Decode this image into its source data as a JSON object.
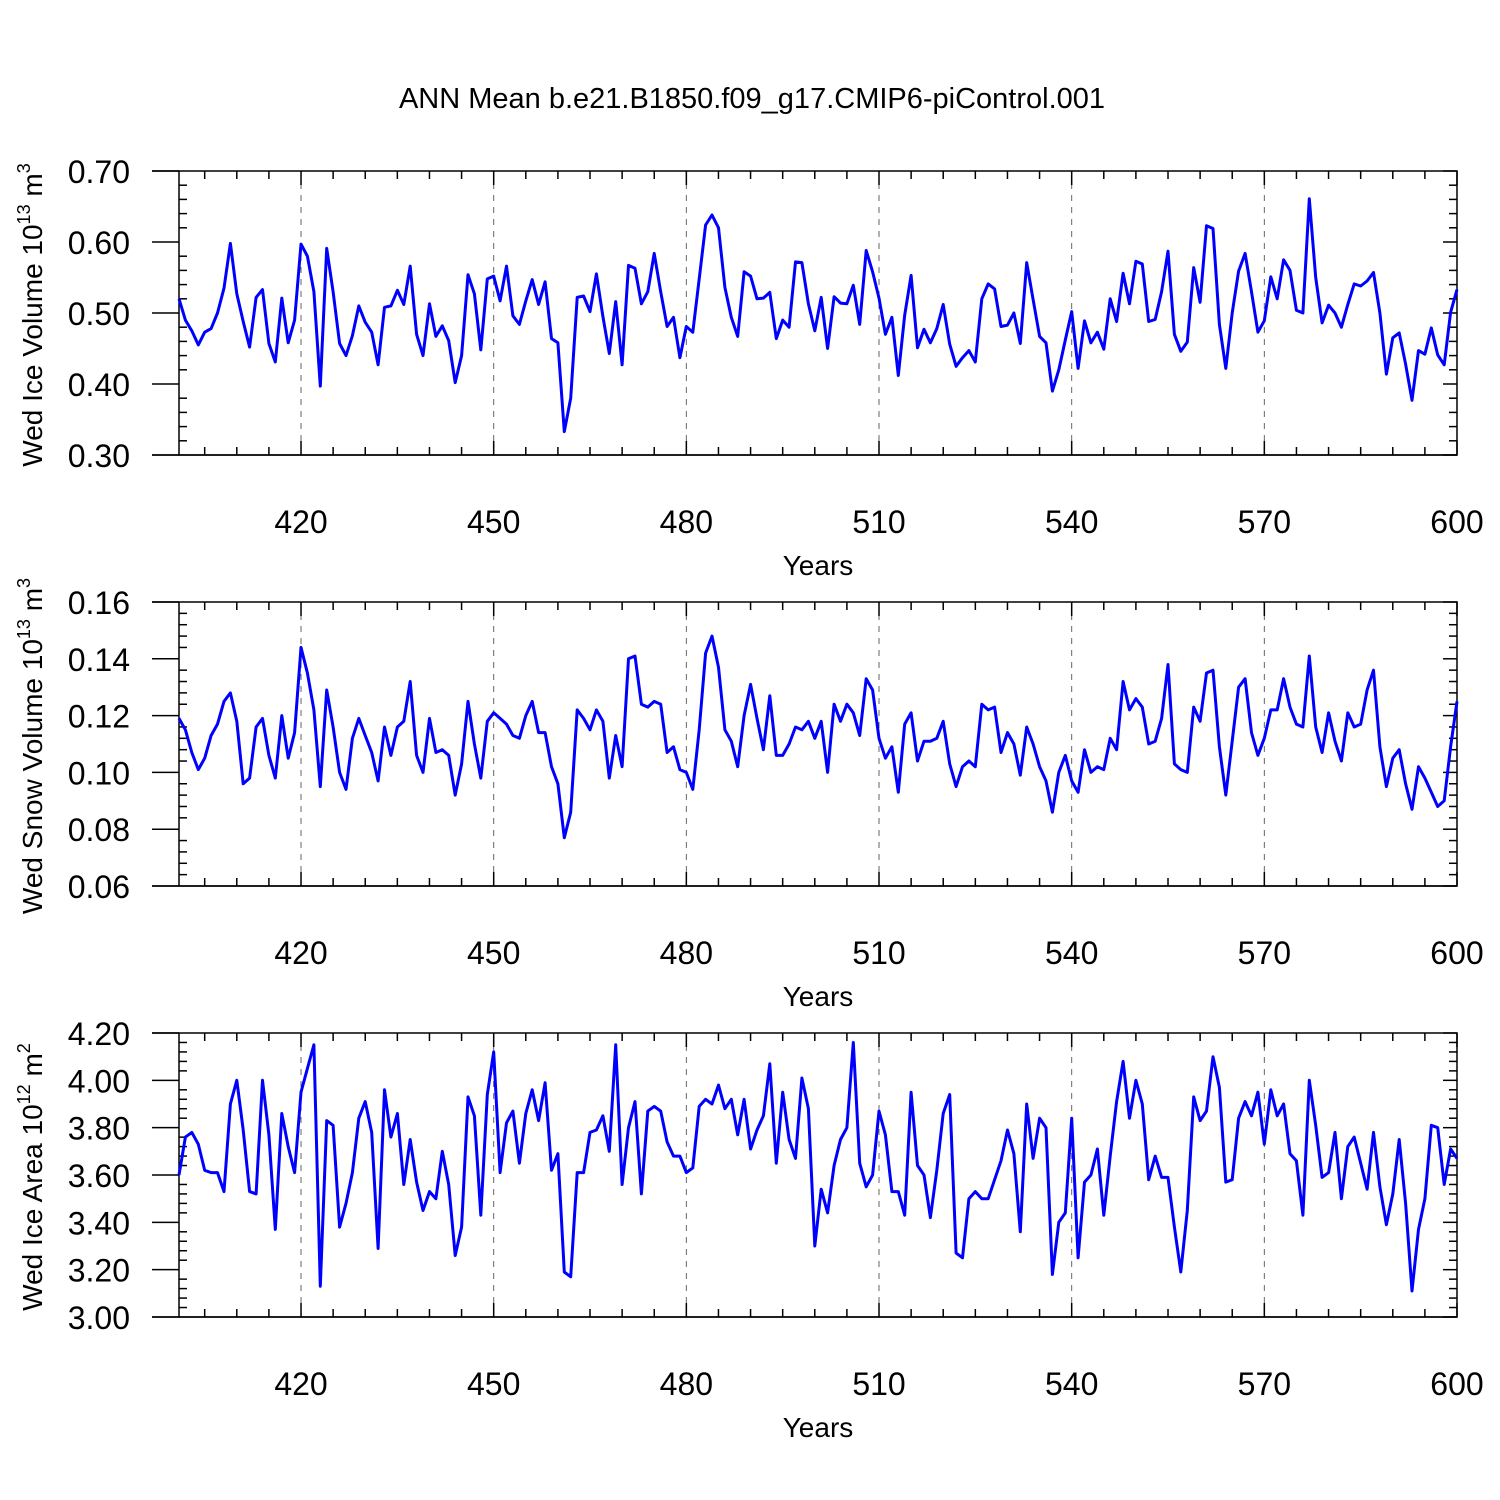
{
  "title": "ANN Mean b.e21.B1850.f09_g17.CMIP6-piControl.001",
  "line_color": "#0000ff",
  "chart_data": [
    {
      "type": "line",
      "ylabel": "Wed Ice Volume 10",
      "ylabel_exp": "13",
      "ylabel_unit": " m",
      "ylabel_unit_exp": "3",
      "xlabel": "Years",
      "xlim": [
        401,
        600
      ],
      "ylim": [
        0.3,
        0.7
      ],
      "yticks": [
        0.3,
        0.4,
        0.5,
        0.6,
        0.7
      ],
      "ytick_labels": [
        "0.30",
        "0.40",
        "0.50",
        "0.60",
        "0.70"
      ],
      "xticks": [
        420,
        450,
        480,
        510,
        540,
        570,
        600
      ],
      "xtick_labels": [
        "420",
        "450",
        "480",
        "510",
        "540",
        "570",
        "600"
      ],
      "grid": "vertical dashed at x ticks",
      "series": [
        {
          "x_start": 401,
          "values": [
            0.52,
            0.49,
            0.475,
            0.455,
            0.473,
            0.478,
            0.5,
            0.535,
            0.598,
            0.527,
            0.488,
            0.452,
            0.522,
            0.533,
            0.457,
            0.431,
            0.521,
            0.458,
            0.49,
            0.597,
            0.58,
            0.53,
            0.397,
            0.591,
            0.53,
            0.457,
            0.44,
            0.468,
            0.51,
            0.487,
            0.473,
            0.427,
            0.508,
            0.51,
            0.532,
            0.512,
            0.566,
            0.47,
            0.44,
            0.513,
            0.467,
            0.482,
            0.461,
            0.402,
            0.44,
            0.554,
            0.527,
            0.448,
            0.548,
            0.552,
            0.517,
            0.566,
            0.496,
            0.484,
            0.517,
            0.547,
            0.512,
            0.544,
            0.464,
            0.458,
            0.333,
            0.38,
            0.522,
            0.524,
            0.502,
            0.555,
            0.495,
            0.443,
            0.516,
            0.427,
            0.567,
            0.563,
            0.513,
            0.53,
            0.584,
            0.53,
            0.481,
            0.494,
            0.437,
            0.481,
            0.473,
            0.548,
            0.624,
            0.638,
            0.62,
            0.536,
            0.494,
            0.467,
            0.558,
            0.552,
            0.52,
            0.521,
            0.529,
            0.464,
            0.49,
            0.48,
            0.572,
            0.571,
            0.513,
            0.475,
            0.522,
            0.45,
            0.523,
            0.514,
            0.513,
            0.539,
            0.484,
            0.588,
            0.558,
            0.521,
            0.47,
            0.494,
            0.412,
            0.497,
            0.553,
            0.451,
            0.477,
            0.458,
            0.478,
            0.512,
            0.456,
            0.425,
            0.437,
            0.447,
            0.431,
            0.52,
            0.541,
            0.534,
            0.481,
            0.483,
            0.5,
            0.457,
            0.571,
            0.519,
            0.467,
            0.458,
            0.39,
            0.42,
            0.462,
            0.502,
            0.422,
            0.489,
            0.458,
            0.473,
            0.449,
            0.52,
            0.488,
            0.556,
            0.513,
            0.573,
            0.569,
            0.488,
            0.491,
            0.53,
            0.587,
            0.47,
            0.446,
            0.459,
            0.564,
            0.515,
            0.623,
            0.619,
            0.484,
            0.422,
            0.5,
            0.559,
            0.584,
            0.53,
            0.473,
            0.489,
            0.551,
            0.52,
            0.575,
            0.56,
            0.504,
            0.5,
            0.661,
            0.55,
            0.486,
            0.511,
            0.5,
            0.48,
            0.512,
            0.541,
            0.538,
            0.545,
            0.557,
            0.5,
            0.414,
            0.465,
            0.472,
            0.428,
            0.377,
            0.447,
            0.442,
            0.479,
            0.441,
            0.427,
            0.501,
            0.533
          ]
        }
      ]
    },
    {
      "type": "line",
      "ylabel": "Wed Snow Volume 10",
      "ylabel_exp": "13",
      "ylabel_unit": " m",
      "ylabel_unit_exp": "3",
      "xlabel": "Years",
      "xlim": [
        401,
        600
      ],
      "ylim": [
        0.06,
        0.16
      ],
      "yticks": [
        0.06,
        0.08,
        0.1,
        0.12,
        0.14,
        0.16
      ],
      "ytick_labels": [
        "0.06",
        "0.08",
        "0.10",
        "0.12",
        "0.14",
        "0.16"
      ],
      "xticks": [
        420,
        450,
        480,
        510,
        540,
        570,
        600
      ],
      "xtick_labels": [
        "420",
        "450",
        "480",
        "510",
        "540",
        "570",
        "600"
      ],
      "grid": "vertical dashed at x ticks",
      "series": [
        {
          "x_start": 401,
          "values": [
            0.119,
            0.115,
            0.107,
            0.101,
            0.105,
            0.113,
            0.117,
            0.125,
            0.128,
            0.118,
            0.096,
            0.098,
            0.116,
            0.119,
            0.106,
            0.098,
            0.12,
            0.105,
            0.114,
            0.144,
            0.135,
            0.122,
            0.095,
            0.129,
            0.116,
            0.1,
            0.094,
            0.112,
            0.119,
            0.113,
            0.107,
            0.097,
            0.116,
            0.106,
            0.116,
            0.118,
            0.132,
            0.106,
            0.1,
            0.119,
            0.107,
            0.108,
            0.106,
            0.092,
            0.103,
            0.125,
            0.11,
            0.098,
            0.118,
            0.121,
            0.119,
            0.117,
            0.113,
            0.112,
            0.12,
            0.125,
            0.114,
            0.114,
            0.102,
            0.096,
            0.077,
            0.086,
            0.122,
            0.119,
            0.115,
            0.122,
            0.118,
            0.098,
            0.113,
            0.102,
            0.14,
            0.141,
            0.124,
            0.123,
            0.125,
            0.124,
            0.107,
            0.109,
            0.101,
            0.1,
            0.094,
            0.115,
            0.142,
            0.148,
            0.137,
            0.115,
            0.111,
            0.102,
            0.12,
            0.131,
            0.119,
            0.108,
            0.127,
            0.106,
            0.106,
            0.11,
            0.116,
            0.115,
            0.118,
            0.112,
            0.118,
            0.1,
            0.124,
            0.118,
            0.124,
            0.121,
            0.113,
            0.133,
            0.129,
            0.112,
            0.105,
            0.109,
            0.093,
            0.117,
            0.121,
            0.104,
            0.111,
            0.111,
            0.112,
            0.118,
            0.103,
            0.095,
            0.102,
            0.104,
            0.102,
            0.124,
            0.122,
            0.123,
            0.107,
            0.114,
            0.11,
            0.099,
            0.116,
            0.11,
            0.102,
            0.097,
            0.086,
            0.1,
            0.106,
            0.097,
            0.093,
            0.108,
            0.1,
            0.102,
            0.101,
            0.112,
            0.108,
            0.132,
            0.122,
            0.126,
            0.123,
            0.11,
            0.111,
            0.119,
            0.138,
            0.103,
            0.101,
            0.1,
            0.123,
            0.118,
            0.135,
            0.136,
            0.109,
            0.092,
            0.111,
            0.13,
            0.133,
            0.114,
            0.106,
            0.112,
            0.122,
            0.122,
            0.133,
            0.123,
            0.117,
            0.116,
            0.141,
            0.116,
            0.107,
            0.121,
            0.111,
            0.104,
            0.121,
            0.116,
            0.117,
            0.129,
            0.136,
            0.109,
            0.095,
            0.105,
            0.108,
            0.096,
            0.087,
            0.102,
            0.098,
            0.093,
            0.088,
            0.09,
            0.109,
            0.125
          ]
        }
      ]
    },
    {
      "type": "line",
      "ylabel": "Wed Ice Area 10",
      "ylabel_exp": "12",
      "ylabel_unit": " m",
      "ylabel_unit_exp": "2",
      "xlabel": "Years",
      "xlim": [
        401,
        600
      ],
      "ylim": [
        3.0,
        4.2
      ],
      "yticks": [
        3.0,
        3.2,
        3.4,
        3.6,
        3.8,
        4.0,
        4.2
      ],
      "ytick_labels": [
        "3.00",
        "3.20",
        "3.40",
        "3.60",
        "3.80",
        "4.00",
        "4.20"
      ],
      "xticks": [
        420,
        450,
        480,
        510,
        540,
        570,
        600
      ],
      "xtick_labels": [
        "420",
        "450",
        "480",
        "510",
        "540",
        "570",
        "600"
      ],
      "grid": "vertical dashed at x ticks",
      "series": [
        {
          "x_start": 401,
          "values": [
            3.6,
            3.76,
            3.78,
            3.73,
            3.62,
            3.61,
            3.61,
            3.53,
            3.9,
            4.0,
            3.79,
            3.53,
            3.52,
            4.0,
            3.77,
            3.37,
            3.86,
            3.72,
            3.61,
            3.95,
            4.05,
            4.15,
            3.13,
            3.83,
            3.81,
            3.38,
            3.48,
            3.61,
            3.84,
            3.91,
            3.78,
            3.29,
            3.96,
            3.76,
            3.86,
            3.56,
            3.75,
            3.57,
            3.45,
            3.53,
            3.5,
            3.7,
            3.56,
            3.26,
            3.38,
            3.93,
            3.85,
            3.43,
            3.94,
            4.12,
            3.61,
            3.82,
            3.87,
            3.65,
            3.86,
            3.96,
            3.83,
            3.99,
            3.62,
            3.69,
            3.19,
            3.17,
            3.61,
            3.61,
            3.78,
            3.79,
            3.85,
            3.7,
            4.15,
            3.56,
            3.8,
            3.91,
            3.52,
            3.87,
            3.89,
            3.87,
            3.74,
            3.68,
            3.68,
            3.61,
            3.63,
            3.89,
            3.92,
            3.9,
            3.98,
            3.88,
            3.92,
            3.77,
            3.92,
            3.71,
            3.79,
            3.85,
            4.07,
            3.65,
            3.95,
            3.75,
            3.67,
            4.01,
            3.88,
            3.3,
            3.54,
            3.44,
            3.64,
            3.75,
            3.8,
            4.16,
            3.65,
            3.55,
            3.6,
            3.87,
            3.77,
            3.53,
            3.53,
            3.43,
            3.95,
            3.64,
            3.6,
            3.42,
            3.62,
            3.86,
            3.94,
            3.27,
            3.25,
            3.5,
            3.53,
            3.5,
            3.5,
            3.58,
            3.66,
            3.79,
            3.69,
            3.36,
            3.9,
            3.67,
            3.84,
            3.8,
            3.18,
            3.4,
            3.44,
            3.84,
            3.25,
            3.57,
            3.6,
            3.71,
            3.43,
            3.68,
            3.91,
            4.08,
            3.84,
            4.0,
            3.9,
            3.58,
            3.68,
            3.59,
            3.59,
            3.38,
            3.19,
            3.45,
            3.93,
            3.83,
            3.87,
            4.1,
            3.97,
            3.57,
            3.58,
            3.84,
            3.91,
            3.85,
            3.95,
            3.73,
            3.96,
            3.85,
            3.9,
            3.69,
            3.66,
            3.43,
            4.0,
            3.81,
            3.59,
            3.61,
            3.78,
            3.5,
            3.72,
            3.76,
            3.65,
            3.54,
            3.78,
            3.55,
            3.39,
            3.52,
            3.75,
            3.48,
            3.11,
            3.37,
            3.5,
            3.81,
            3.8,
            3.56,
            3.71,
            3.67
          ]
        }
      ]
    }
  ]
}
